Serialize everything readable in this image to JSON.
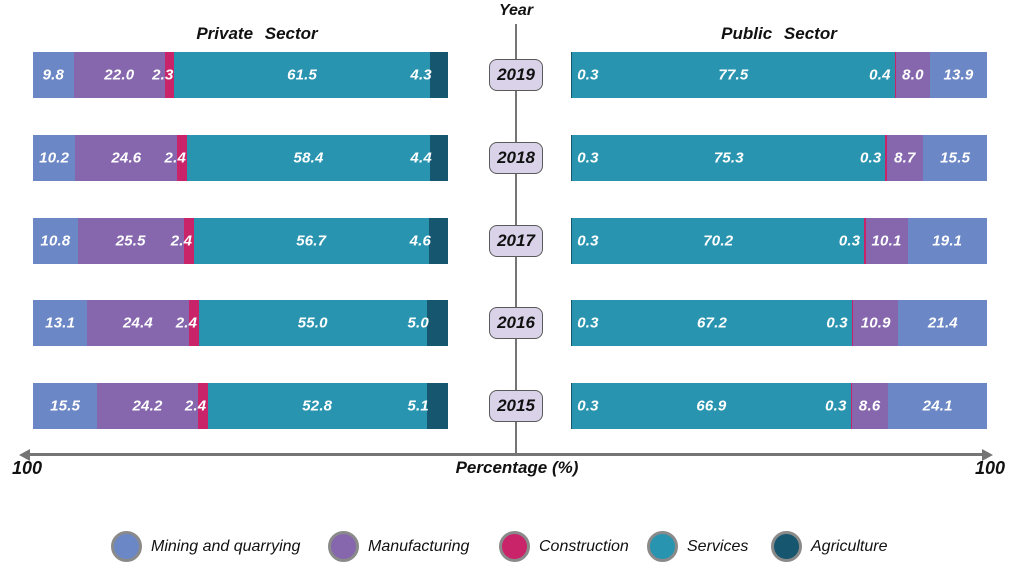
{
  "header": {
    "year_axis_title": "Year"
  },
  "axis": {
    "percent_label": "Percentage (%)",
    "left_max": "100",
    "right_max": "100"
  },
  "colors": {
    "mining": "#6c87c5",
    "manufacturing": "#8667ae",
    "construction": "#c9246a",
    "services": "#2994b0",
    "agriculture": "#16566e",
    "year_box_fill": "#d9d2e8",
    "year_box_border": "#5a5a5a",
    "axis_line": "#757575",
    "legend_swatch_border": "#8a8a8a",
    "bar_value_text": "#ffffff"
  },
  "legend": {
    "items": [
      {
        "key": "mining",
        "label": "Mining and quarrying"
      },
      {
        "key": "manufacturing",
        "label": "Manufacturing"
      },
      {
        "key": "construction",
        "label": "Construction"
      },
      {
        "key": "services",
        "label": "Services"
      },
      {
        "key": "agriculture",
        "label": "Agriculture"
      }
    ]
  },
  "chart_data": {
    "type": "bar",
    "variant": "butterfly-diverging-stacked",
    "center_axis_label": "Year",
    "xlabel": "Percentage (%)",
    "axis_range": [
      0,
      100
    ],
    "categories": [
      "2019",
      "2018",
      "2017",
      "2016",
      "2015"
    ],
    "legend_entries": [
      "Mining and quarrying",
      "Manufacturing",
      "Construction",
      "Services",
      "Agriculture"
    ],
    "sides": [
      {
        "key": "private",
        "name": "Private Sector",
        "stack_order": "left-to-right (outer edge to center axis)",
        "series": [
          {
            "key": "mining",
            "name": "Mining and quarrying",
            "values": [
              9.8,
              10.2,
              10.8,
              13.1,
              15.5
            ]
          },
          {
            "key": "manufacturing",
            "name": "Manufacturing",
            "values": [
              22.0,
              24.6,
              25.5,
              24.4,
              24.2
            ]
          },
          {
            "key": "construction",
            "name": "Construction",
            "values": [
              2.3,
              2.4,
              2.4,
              2.4,
              2.4
            ]
          },
          {
            "key": "services",
            "name": "Services",
            "values": [
              61.5,
              58.4,
              56.7,
              55.0,
              52.8
            ]
          },
          {
            "key": "agriculture",
            "name": "Agriculture",
            "values": [
              4.3,
              4.4,
              4.6,
              5.0,
              5.1
            ]
          }
        ]
      },
      {
        "key": "public",
        "name": "Public Sector",
        "stack_order": "left-to-right (center axis to outer edge)",
        "series": [
          {
            "key": "agriculture",
            "name": "Agriculture",
            "values": [
              0.3,
              0.3,
              0.3,
              0.3,
              0.3
            ]
          },
          {
            "key": "services",
            "name": "Services",
            "values": [
              77.5,
              75.3,
              70.2,
              67.2,
              66.9
            ]
          },
          {
            "key": "construction",
            "name": "Construction",
            "values": [
              0.4,
              0.3,
              0.3,
              0.3,
              0.3
            ]
          },
          {
            "key": "manufacturing",
            "name": "Manufacturing",
            "values": [
              8.0,
              8.7,
              10.1,
              10.9,
              8.6
            ]
          },
          {
            "key": "mining",
            "name": "Mining and quarrying",
            "values": [
              13.9,
              15.5,
              19.1,
              21.4,
              24.1
            ]
          }
        ]
      }
    ]
  }
}
